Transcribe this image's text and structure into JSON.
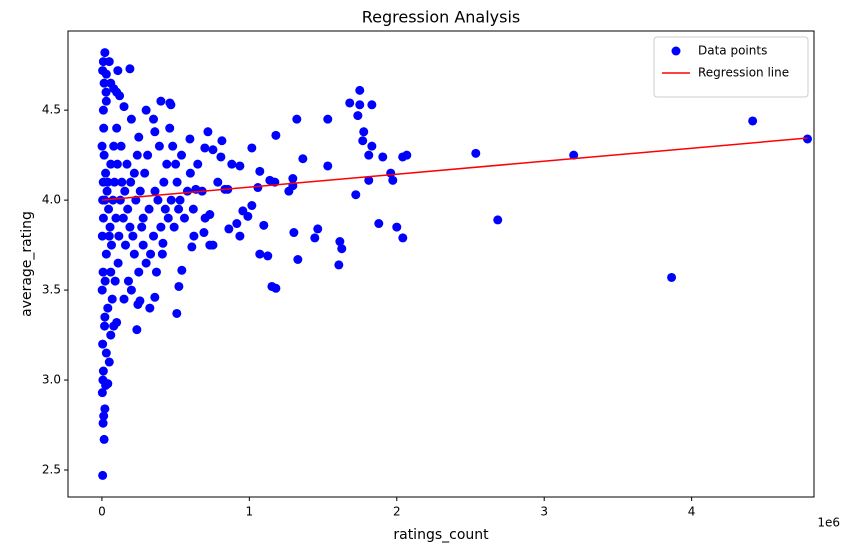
{
  "chart_data": {
    "type": "scatter",
    "title": "Regression Analysis",
    "x_label": "ratings_count",
    "y_label": "average_rating",
    "x_offset_label": "1e6",
    "legend": "upper right",
    "grid": false,
    "xlim": [
      -230000,
      4830000
    ],
    "ylim": [
      2.35,
      4.94
    ],
    "xticks": [
      {
        "value": 0,
        "label": "0"
      },
      {
        "value": 1000000,
        "label": "1"
      },
      {
        "value": 2000000,
        "label": "2"
      },
      {
        "value": 3000000,
        "label": "3"
      },
      {
        "value": 4000000,
        "label": "4"
      }
    ],
    "yticks": [
      2.5,
      {
        "value": 3,
        "label": "3.0"
      },
      3.5,
      {
        "value": 4,
        "label": "4.0"
      },
      4.5
    ],
    "series": [
      {
        "name": "Data points",
        "type": "scatter",
        "color": "#0000ff",
        "x": [
          4786000,
          4414000,
          3864000,
          3200000,
          2685000,
          2536000,
          2068000,
          2040000,
          2041000,
          2000000,
          1973000,
          1959000,
          1905000,
          1878000,
          1831000,
          1831000,
          1810000,
          1810000,
          1776000,
          1769000,
          1749000,
          1749000,
          1736000,
          1722000,
          1681000,
          1627000,
          1614000,
          1607000,
          1532000,
          1532000,
          1464000,
          1444000,
          1363000,
          1329000,
          1322000,
          1302000,
          1295000,
          1295000,
          1268000,
          1180000,
          1180000,
          1153000,
          1139000,
          1173000,
          1125000,
          1071000,
          1098000,
          1071000,
          1058000,
          1017000,
          1017000,
          990000,
          936000,
          956000,
          936000,
          881000,
          915000,
          861000,
          854000,
          834000,
          814000,
          807000,
          786000,
          753000,
          719000,
          732000,
          753000,
          732000,
          698000,
          692000,
          637000,
          597000,
          610000,
          624000,
          508000,
          522000,
          542000,
          461000,
          468000,
          400000,
          359000,
          414000,
          325000,
          359000,
          237000,
          244000,
          258000,
          190000,
          108000,
          20000,
          10000,
          50000,
          5000,
          30000,
          15000,
          60000,
          80000,
          100000,
          120000,
          5000,
          15000,
          8000,
          12000,
          20000,
          3000,
          25000,
          40000,
          10000,
          50000,
          30000,
          5000,
          60000,
          80000,
          100000,
          20000,
          150000,
          200000,
          180000,
          250000,
          300000,
          220000,
          280000,
          350000,
          400000,
          450000,
          380000,
          420000,
          500000,
          480000,
          460000,
          350000,
          300000,
          250000,
          200000,
          150000,
          130000,
          170000,
          220000,
          260000,
          320000,
          280000,
          240000,
          190000,
          160000,
          110000,
          90000,
          70000,
          40000,
          60000,
          30000,
          50000,
          10000,
          20000,
          40000,
          60000,
          80000,
          100000,
          10000,
          30000,
          15000,
          25000,
          35000,
          45000,
          55000,
          65000,
          75000,
          85000,
          95000,
          105000,
          115000,
          125000,
          135000,
          145000,
          155000,
          175000,
          195000,
          210000,
          230000,
          270000,
          290000,
          310000,
          330000,
          360000,
          370000,
          390000,
          410000,
          430000,
          440000,
          470000,
          490000,
          510000,
          520000,
          530000,
          540000,
          560000,
          580000,
          600000,
          620000,
          650000,
          680000,
          700000,
          5000,
          2000,
          1000,
          3000,
          8000,
          12000,
          18000,
          22000,
          28000,
          7000,
          9000
        ],
        "values": [
          4.34,
          4.44,
          3.57,
          4.25,
          3.89,
          4.26,
          4.25,
          4.24,
          3.79,
          3.85,
          4.11,
          4.15,
          4.24,
          3.87,
          4.53,
          4.3,
          4.25,
          4.11,
          4.38,
          4.33,
          4.61,
          4.53,
          4.47,
          4.03,
          4.54,
          3.73,
          3.77,
          3.64,
          4.19,
          4.45,
          3.84,
          3.79,
          4.23,
          3.67,
          4.45,
          3.82,
          4.12,
          4.08,
          4.05,
          4.36,
          3.51,
          3.52,
          4.11,
          4.1,
          3.69,
          3.7,
          3.86,
          4.16,
          4.07,
          4.29,
          3.97,
          3.91,
          3.8,
          3.94,
          4.19,
          4.2,
          3.87,
          3.84,
          4.06,
          4.06,
          4.33,
          4.24,
          4.1,
          4.28,
          4.38,
          3.75,
          3.75,
          3.92,
          4.29,
          3.82,
          4.06,
          4.34,
          3.74,
          3.8,
          3.37,
          3.52,
          3.61,
          4.54,
          4.53,
          4.55,
          4.38,
          3.76,
          3.4,
          3.46,
          3.28,
          3.42,
          3.44,
          4.73,
          4.72,
          4.82,
          4.77,
          4.77,
          4.72,
          4.7,
          4.65,
          4.65,
          4.62,
          4.6,
          4.58,
          2.47,
          2.67,
          2.76,
          2.8,
          2.84,
          2.93,
          2.97,
          2.98,
          3.05,
          3.1,
          3.15,
          3.2,
          3.25,
          3.3,
          3.32,
          3.35,
          3.45,
          3.5,
          3.55,
          3.6,
          3.65,
          3.7,
          3.75,
          3.8,
          3.85,
          3.9,
          4.0,
          4.1,
          4.2,
          4.3,
          4.4,
          4.45,
          4.5,
          4.35,
          4.45,
          4.52,
          4.3,
          4.2,
          4.15,
          4.05,
          3.95,
          3.9,
          4.25,
          3.85,
          3.75,
          3.65,
          3.55,
          3.45,
          3.4,
          3.6,
          3.7,
          3.8,
          3.9,
          4.0,
          4.1,
          4.2,
          4.3,
          4.4,
          4.5,
          4.55,
          4.25,
          4.15,
          4.05,
          3.95,
          3.85,
          3.75,
          4.0,
          4.1,
          3.9,
          4.2,
          3.8,
          4.0,
          4.1,
          3.9,
          4.05,
          3.95,
          4.1,
          3.8,
          4.0,
          3.85,
          4.15,
          4.25,
          3.7,
          4.05,
          3.6,
          4.3,
          3.7,
          3.95,
          4.2,
          4.0,
          3.85,
          4.1,
          3.95,
          4.0,
          4.25,
          3.9,
          4.05,
          4.15,
          3.95,
          4.2,
          4.05,
          3.9,
          4.0,
          3.5,
          4.3,
          3.8,
          3.6,
          4.4,
          3.3,
          3.55,
          4.6,
          3.0,
          4.1
        ]
      },
      {
        "name": "Regression line",
        "type": "line",
        "color": "#ff0000",
        "x": [
          0,
          4786000
        ],
        "values": [
          4.0,
          4.345
        ]
      }
    ]
  }
}
